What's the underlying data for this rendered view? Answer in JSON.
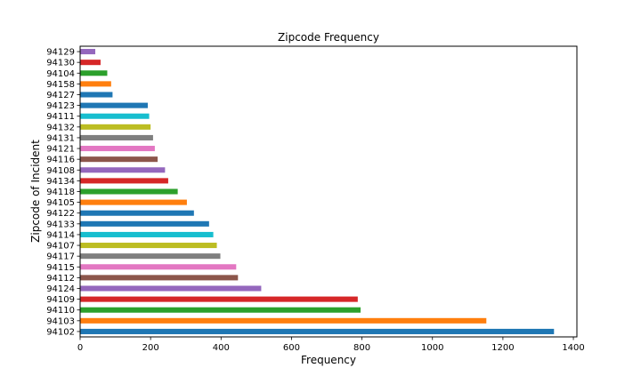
{
  "chart_data": {
    "type": "bar",
    "orientation": "horizontal",
    "title": "Zipcode Frequency",
    "xlabel": "Frequency",
    "ylabel": "Zipcode of Incident",
    "xlim": [
      0,
      1410
    ],
    "xticks": [
      0,
      200,
      400,
      600,
      800,
      1000,
      1200,
      1400
    ],
    "grid": false,
    "legend": "none",
    "categories": [
      "94102",
      "94103",
      "94110",
      "94109",
      "94124",
      "94112",
      "94115",
      "94117",
      "94107",
      "94114",
      "94133",
      "94122",
      "94105",
      "94118",
      "94134",
      "94108",
      "94116",
      "94121",
      "94131",
      "94132",
      "94111",
      "94123",
      "94127",
      "94158",
      "94104",
      "94130",
      "94129"
    ],
    "values": [
      1345,
      1153,
      796,
      788,
      514,
      448,
      443,
      398,
      388,
      378,
      366,
      323,
      303,
      277,
      250,
      241,
      220,
      212,
      207,
      200,
      196,
      192,
      92,
      88,
      77,
      58,
      43
    ],
    "bar_colors": [
      "#1f77b4",
      "#ff7f0e",
      "#2ca02c",
      "#d62728",
      "#9467bd",
      "#8c564b",
      "#e377c2",
      "#7f7f7f",
      "#bcbd22",
      "#17becf",
      "#1f77b4",
      "#1f77b4",
      "#ff7f0e",
      "#2ca02c",
      "#d62728",
      "#9467bd",
      "#8c564b",
      "#e377c2",
      "#7f7f7f",
      "#bcbd22",
      "#17becf",
      "#1f77b4",
      "#1f77b4",
      "#ff7f0e",
      "#2ca02c",
      "#d62728",
      "#9467bd"
    ]
  }
}
